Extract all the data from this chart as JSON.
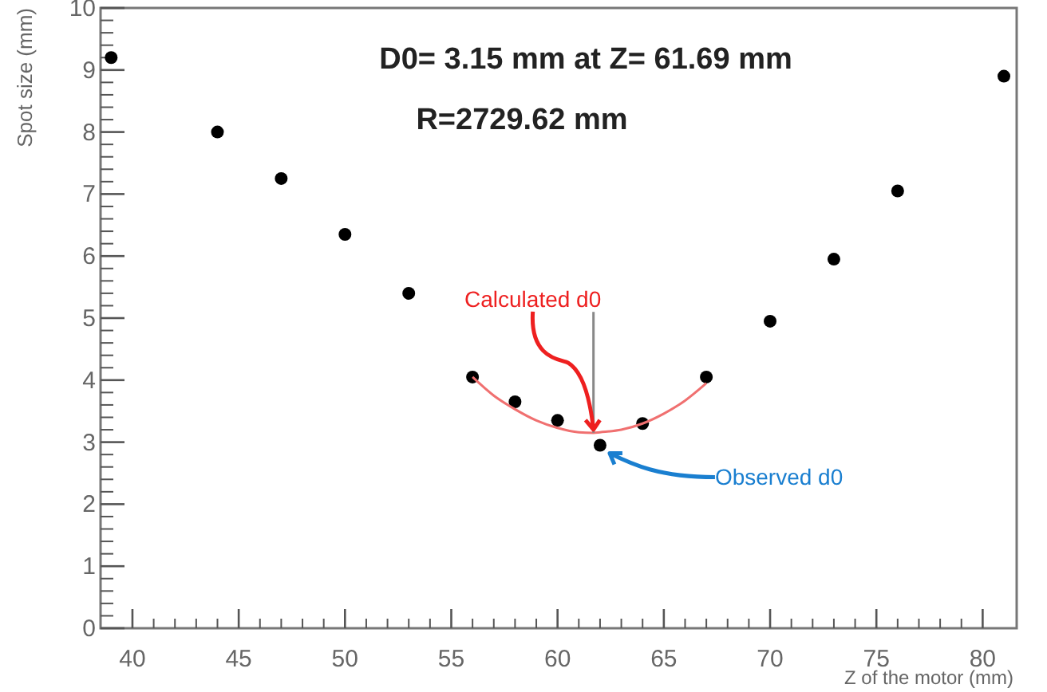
{
  "chart_data": {
    "type": "scatter",
    "xlabel": "Z of the motor (mm)",
    "ylabel": "Spot size (mm)",
    "xlim": [
      38.5,
      81.6
    ],
    "ylim": [
      0,
      10
    ],
    "xticks": [
      40,
      45,
      50,
      55,
      60,
      65,
      70,
      75,
      80
    ],
    "yticks": [
      0,
      1,
      2,
      3,
      4,
      5,
      6,
      7,
      8,
      9,
      10
    ],
    "grid": false,
    "marker": "circle",
    "series": [
      {
        "color": "#000000",
        "x": [
          39,
          44,
          47,
          50,
          53,
          56,
          58,
          60,
          62,
          64,
          67,
          70,
          73,
          76,
          81
        ],
        "values": [
          9.2,
          8.0,
          7.25,
          6.35,
          5.4,
          4.05,
          3.65,
          3.35,
          2.95,
          3.3,
          4.05,
          4.95,
          5.95,
          7.05,
          8.9
        ]
      },
      {
        "type": "line",
        "color": "#f07070",
        "marker": "none",
        "x": [
          56,
          57,
          58,
          59,
          60,
          61,
          61.69,
          62,
          63,
          64,
          65,
          66,
          67
        ],
        "values": [
          4.05,
          3.75,
          3.53,
          3.35,
          3.23,
          3.16,
          3.15,
          3.16,
          3.2,
          3.3,
          3.46,
          3.67,
          3.95
        ]
      },
      {
        "type": "line",
        "color": "#888888",
        "marker": "none",
        "x": [
          61.69,
          61.69
        ],
        "values": [
          3.15,
          5.1
        ]
      }
    ],
    "annotations": [
      "D0= 3.15 mm at Z= 61.69 mm",
      "R=2729.62 mm",
      {
        "text": "Calculated d0",
        "x": 61.69,
        "y": 3.15
      },
      {
        "text": "Observed d0",
        "x": 62,
        "y": 2.95
      }
    ]
  }
}
